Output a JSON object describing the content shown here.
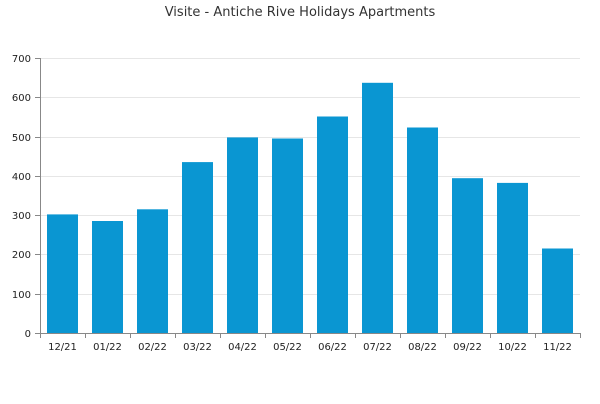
{
  "chart_data": {
    "type": "bar",
    "title": "Visite - Antiche Rive Holidays Apartments",
    "xlabel": "",
    "ylabel": "",
    "categories": [
      "12/21",
      "01/22",
      "02/22",
      "03/22",
      "04/22",
      "05/22",
      "06/22",
      "07/22",
      "08/22",
      "09/22",
      "10/22",
      "11/22"
    ],
    "values": [
      302,
      285,
      315,
      435,
      498,
      495,
      551,
      637,
      523,
      394,
      382,
      215
    ],
    "ylim": [
      0,
      700
    ],
    "yticks": [
      "0",
      "100",
      "200",
      "300",
      "400",
      "500",
      "600",
      "700"
    ],
    "grid": true,
    "legend": "none",
    "bar_color": "#0a96d2"
  }
}
